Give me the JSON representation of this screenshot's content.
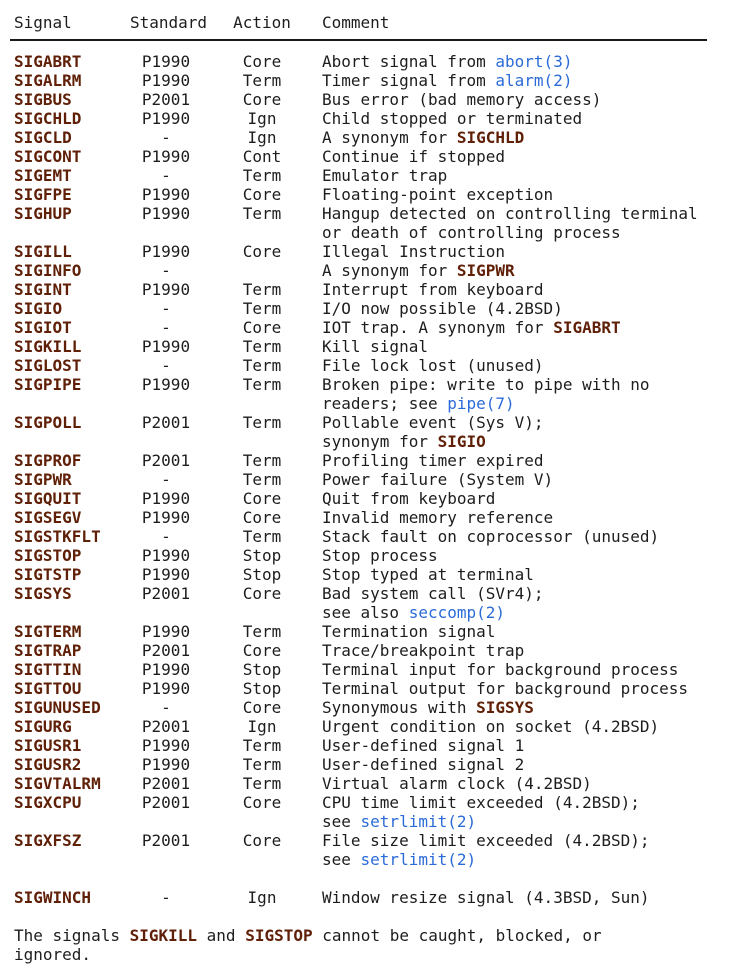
{
  "page": {
    "background": "#ffffff",
    "text_color": "#1d1d1d",
    "signal_bold_color": "#602008",
    "link_color": "#2b6bd8"
  },
  "table": {
    "headers": [
      "Signal",
      "Standard",
      "Action",
      "Comment"
    ],
    "rows": [
      {
        "signal": "SIGABRT",
        "standard": "P1990",
        "action": "Core",
        "comment": [
          [
            {
              "t": "Abort signal from "
            },
            {
              "t": "abort(3)",
              "s": "l"
            }
          ]
        ]
      },
      {
        "signal": "SIGALRM",
        "standard": "P1990",
        "action": "Term",
        "comment": [
          [
            {
              "t": "Timer signal from "
            },
            {
              "t": "alarm(2)",
              "s": "l"
            }
          ]
        ]
      },
      {
        "signal": "SIGBUS",
        "standard": "P2001",
        "action": "Core",
        "comment": [
          [
            {
              "t": "Bus error (bad memory access)"
            }
          ]
        ]
      },
      {
        "signal": "SIGCHLD",
        "standard": "P1990",
        "action": "Ign",
        "comment": [
          [
            {
              "t": "Child stopped or terminated"
            }
          ]
        ]
      },
      {
        "signal": "SIGCLD",
        "standard": "-",
        "action": "Ign",
        "comment": [
          [
            {
              "t": "A synonym for "
            },
            {
              "t": "SIGCHLD",
              "s": "b"
            }
          ]
        ]
      },
      {
        "signal": "SIGCONT",
        "standard": "P1990",
        "action": "Cont",
        "comment": [
          [
            {
              "t": "Continue if stopped"
            }
          ]
        ]
      },
      {
        "signal": "SIGEMT",
        "standard": "-",
        "action": "Term",
        "comment": [
          [
            {
              "t": "Emulator trap"
            }
          ]
        ]
      },
      {
        "signal": "SIGFPE",
        "standard": "P1990",
        "action": "Core",
        "comment": [
          [
            {
              "t": "Floating-point exception"
            }
          ]
        ]
      },
      {
        "signal": "SIGHUP",
        "standard": "P1990",
        "action": "Term",
        "comment": [
          [
            {
              "t": "Hangup detected on controlling terminal"
            }
          ],
          [
            {
              "t": "or death of controlling process"
            }
          ]
        ]
      },
      {
        "signal": "SIGILL",
        "standard": "P1990",
        "action": "Core",
        "comment": [
          [
            {
              "t": "Illegal Instruction"
            }
          ]
        ]
      },
      {
        "signal": "SIGINFO",
        "standard": "-",
        "action": "",
        "comment": [
          [
            {
              "t": "A synonym for "
            },
            {
              "t": "SIGPWR",
              "s": "b"
            }
          ]
        ]
      },
      {
        "signal": "SIGINT",
        "standard": "P1990",
        "action": "Term",
        "comment": [
          [
            {
              "t": "Interrupt from keyboard"
            }
          ]
        ]
      },
      {
        "signal": "SIGIO",
        "standard": "-",
        "action": "Term",
        "comment": [
          [
            {
              "t": "I/O now possible (4.2BSD)"
            }
          ]
        ]
      },
      {
        "signal": "SIGIOT",
        "standard": "-",
        "action": "Core",
        "comment": [
          [
            {
              "t": "IOT trap. A synonym for "
            },
            {
              "t": "SIGABRT",
              "s": "b"
            }
          ]
        ]
      },
      {
        "signal": "SIGKILL",
        "standard": "P1990",
        "action": "Term",
        "comment": [
          [
            {
              "t": "Kill signal"
            }
          ]
        ]
      },
      {
        "signal": "SIGLOST",
        "standard": "-",
        "action": "Term",
        "comment": [
          [
            {
              "t": "File lock lost (unused)"
            }
          ]
        ]
      },
      {
        "signal": "SIGPIPE",
        "standard": "P1990",
        "action": "Term",
        "comment": [
          [
            {
              "t": "Broken pipe: write to pipe with no"
            }
          ],
          [
            {
              "t": "readers; see "
            },
            {
              "t": "pipe(7)",
              "s": "l"
            }
          ]
        ]
      },
      {
        "signal": "SIGPOLL",
        "standard": "P2001",
        "action": "Term",
        "comment": [
          [
            {
              "t": "Pollable event (Sys V);"
            }
          ],
          [
            {
              "t": "synonym for "
            },
            {
              "t": "SIGIO",
              "s": "b"
            }
          ]
        ]
      },
      {
        "signal": "SIGPROF",
        "standard": "P2001",
        "action": "Term",
        "comment": [
          [
            {
              "t": "Profiling timer expired"
            }
          ]
        ]
      },
      {
        "signal": "SIGPWR",
        "standard": "-",
        "action": "Term",
        "comment": [
          [
            {
              "t": "Power failure (System V)"
            }
          ]
        ]
      },
      {
        "signal": "SIGQUIT",
        "standard": "P1990",
        "action": "Core",
        "comment": [
          [
            {
              "t": "Quit from keyboard"
            }
          ]
        ]
      },
      {
        "signal": "SIGSEGV",
        "standard": "P1990",
        "action": "Core",
        "comment": [
          [
            {
              "t": "Invalid memory reference"
            }
          ]
        ]
      },
      {
        "signal": "SIGSTKFLT",
        "standard": "-",
        "action": "Term",
        "comment": [
          [
            {
              "t": "Stack fault on coprocessor (unused)"
            }
          ]
        ]
      },
      {
        "signal": "SIGSTOP",
        "standard": "P1990",
        "action": "Stop",
        "comment": [
          [
            {
              "t": "Stop process"
            }
          ]
        ]
      },
      {
        "signal": "SIGTSTP",
        "standard": "P1990",
        "action": "Stop",
        "comment": [
          [
            {
              "t": "Stop typed at terminal"
            }
          ]
        ]
      },
      {
        "signal": "SIGSYS",
        "standard": "P2001",
        "action": "Core",
        "comment": [
          [
            {
              "t": "Bad system call (SVr4);"
            }
          ],
          [
            {
              "t": "see also "
            },
            {
              "t": "seccomp(2)",
              "s": "l"
            }
          ]
        ]
      },
      {
        "signal": "SIGTERM",
        "standard": "P1990",
        "action": "Term",
        "comment": [
          [
            {
              "t": "Termination signal"
            }
          ]
        ]
      },
      {
        "signal": "SIGTRAP",
        "standard": "P2001",
        "action": "Core",
        "comment": [
          [
            {
              "t": "Trace/breakpoint trap"
            }
          ]
        ]
      },
      {
        "signal": "SIGTTIN",
        "standard": "P1990",
        "action": "Stop",
        "comment": [
          [
            {
              "t": "Terminal input for background process"
            }
          ]
        ]
      },
      {
        "signal": "SIGTTOU",
        "standard": "P1990",
        "action": "Stop",
        "comment": [
          [
            {
              "t": "Terminal output for background process"
            }
          ]
        ]
      },
      {
        "signal": "SIGUNUSED",
        "standard": "-",
        "action": "Core",
        "comment": [
          [
            {
              "t": "Synonymous with "
            },
            {
              "t": "SIGSYS",
              "s": "b"
            }
          ]
        ]
      },
      {
        "signal": "SIGURG",
        "standard": "P2001",
        "action": "Ign",
        "comment": [
          [
            {
              "t": "Urgent condition on socket (4.2BSD)"
            }
          ]
        ]
      },
      {
        "signal": "SIGUSR1",
        "standard": "P1990",
        "action": "Term",
        "comment": [
          [
            {
              "t": "User-defined signal 1"
            }
          ]
        ]
      },
      {
        "signal": "SIGUSR2",
        "standard": "P1990",
        "action": "Term",
        "comment": [
          [
            {
              "t": "User-defined signal 2"
            }
          ]
        ]
      },
      {
        "signal": "SIGVTALRM",
        "standard": "P2001",
        "action": "Term",
        "comment": [
          [
            {
              "t": "Virtual alarm clock (4.2BSD)"
            }
          ]
        ]
      },
      {
        "signal": "SIGXCPU",
        "standard": "P2001",
        "action": "Core",
        "comment": [
          [
            {
              "t": "CPU time limit exceeded (4.2BSD);"
            }
          ],
          [
            {
              "t": "see "
            },
            {
              "t": "setrlimit(2)",
              "s": "l"
            }
          ]
        ]
      },
      {
        "signal": "SIGXFSZ",
        "standard": "P2001",
        "action": "Core",
        "comment": [
          [
            {
              "t": "File size limit exceeded (4.2BSD);"
            }
          ],
          [
            {
              "t": "see "
            },
            {
              "t": "setrlimit(2)",
              "s": "l"
            }
          ]
        ]
      },
      {
        "signal": "SIGWINCH",
        "standard": "-",
        "action": "Ign",
        "spacer_before": true,
        "comment": [
          [
            {
              "t": "Window resize signal (4.3BSD, Sun)"
            }
          ]
        ]
      }
    ]
  },
  "footer": {
    "lines": [
      [
        {
          "t": "The signals "
        },
        {
          "t": "SIGKILL",
          "s": "b"
        },
        {
          "t": " and "
        },
        {
          "t": "SIGSTOP",
          "s": "b"
        },
        {
          "t": " cannot be caught, blocked, or"
        }
      ],
      [
        {
          "t": "ignored."
        }
      ]
    ]
  }
}
